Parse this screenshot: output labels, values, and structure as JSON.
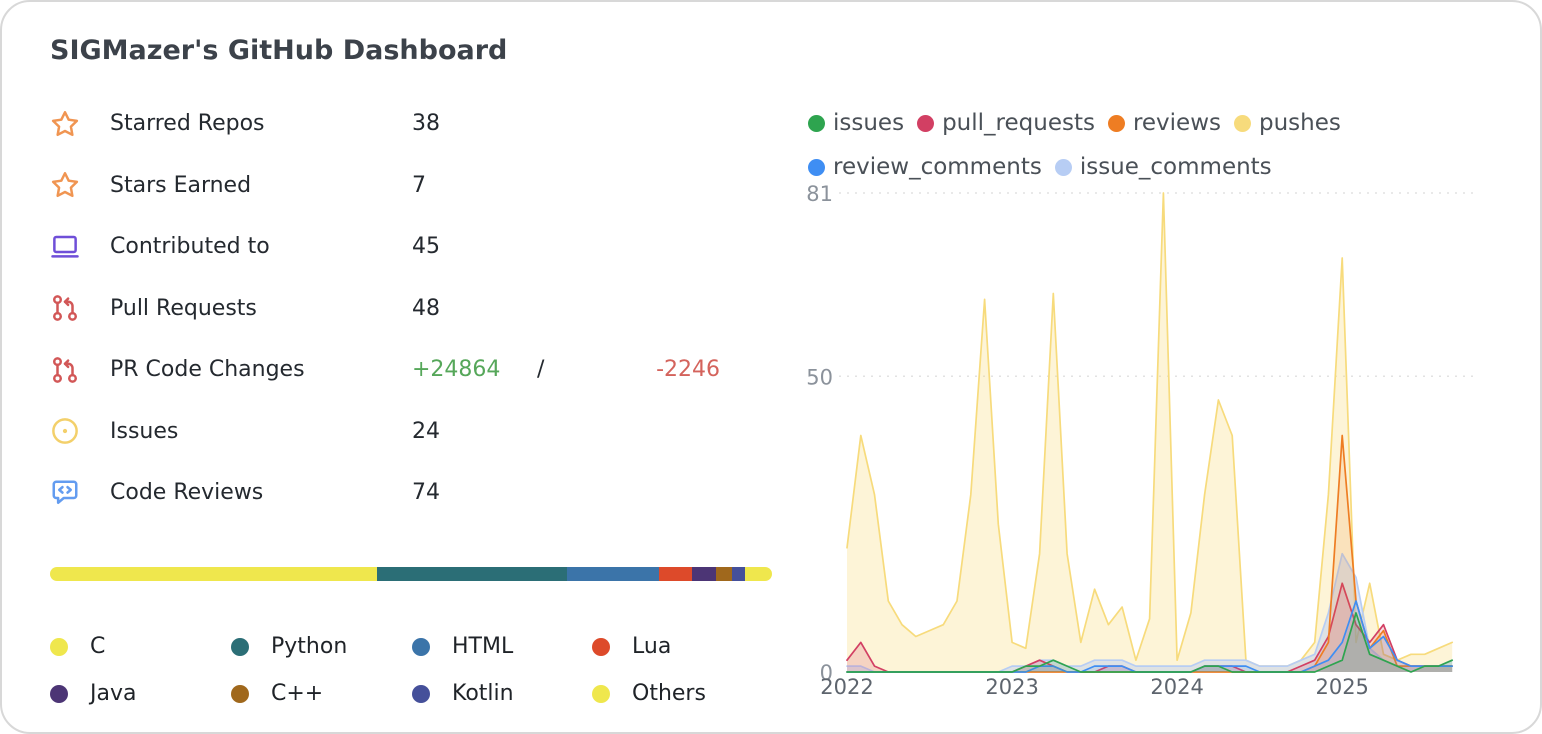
{
  "title": "SIGMazer's GitHub Dashboard",
  "colors": {
    "additions": "#56a75a",
    "deletions": "#d4635c",
    "title_text": "#3c424a",
    "card_border": "#d8d8d8"
  },
  "stats": [
    {
      "icon": "star-icon",
      "icon_color": "#f09552",
      "label": "Starred Repos",
      "value": "38"
    },
    {
      "icon": "star-icon",
      "icon_color": "#f09552",
      "label": "Stars Earned",
      "value": "7"
    },
    {
      "icon": "contributed-icon",
      "icon_color": "#6f4fd8",
      "label": "Contributed to",
      "value": "45"
    },
    {
      "icon": "pull-request-icon",
      "icon_color": "#d25757",
      "label": "Pull Requests",
      "value": "48"
    },
    {
      "icon": "pull-request-icon",
      "icon_color": "#d25757",
      "label": "PR Code Changes",
      "additions": "+24864",
      "separator": "/",
      "deletions": "-2246"
    },
    {
      "icon": "issue-icon",
      "icon_color": "#f3d06b",
      "label": "Issues",
      "value": "24"
    },
    {
      "icon": "code-review-icon",
      "icon_color": "#639cf0",
      "label": "Code Reviews",
      "value": "74"
    }
  ],
  "languages": [
    {
      "name": "C",
      "color": "#efe74d",
      "percent": 45.3
    },
    {
      "name": "Python",
      "color": "#2b6e76",
      "percent": 26.3
    },
    {
      "name": "HTML",
      "color": "#3b74a9",
      "percent": 12.7
    },
    {
      "name": "Lua",
      "color": "#dd4a2a",
      "percent": 4.6
    },
    {
      "name": "Java",
      "color": "#4c3575",
      "percent": 3.3
    },
    {
      "name": "C++",
      "color": "#a0681c",
      "percent": 2.2
    },
    {
      "name": "Kotlin",
      "color": "#45509a",
      "percent": 1.9
    },
    {
      "name": "Others",
      "color": "#efe74d",
      "percent": 3.7
    }
  ],
  "chart_data": {
    "type": "area",
    "title": "Contribution activity over time",
    "x_unit": "months, starting Jan 2022",
    "xlim": [
      2022,
      2025.75
    ],
    "ylim": [
      0,
      81
    ],
    "y_ticks": [
      0,
      50,
      81
    ],
    "grid_y": [
      50,
      81
    ],
    "x_ticks": [
      2022,
      2023,
      2024,
      2025
    ],
    "x_tick_labels": [
      "2022",
      "2023",
      "2024",
      "2025"
    ],
    "legend_rows": [
      [
        "issues",
        "pull_requests",
        "reviews",
        "pushes"
      ],
      [
        "review_comments",
        "issue_comments"
      ]
    ],
    "series": [
      {
        "name": "pushes",
        "color": "#f7db7c",
        "fill_opacity": 0.3,
        "values": [
          21,
          40,
          30,
          12,
          8,
          6,
          7,
          8,
          12,
          30,
          63,
          25,
          5,
          4,
          20,
          64,
          20,
          5,
          14,
          8,
          11,
          2,
          9,
          81,
          2,
          10,
          30,
          46,
          40,
          2,
          1,
          1,
          1,
          2,
          5,
          30,
          70,
          5,
          15,
          3,
          2,
          3,
          3,
          4,
          5
        ]
      },
      {
        "name": "issue_comments",
        "color": "#b7cdf4",
        "fill_opacity": 0.45,
        "values": [
          1,
          1,
          0,
          0,
          0,
          0,
          0,
          0,
          0,
          0,
          0,
          0,
          1,
          1,
          2,
          2,
          1,
          1,
          2,
          2,
          2,
          1,
          1,
          1,
          1,
          1,
          2,
          2,
          2,
          2,
          1,
          1,
          1,
          2,
          3,
          10,
          20,
          16,
          4,
          2,
          1,
          1,
          1,
          1,
          2
        ]
      },
      {
        "name": "pull_requests",
        "color": "#d23f63",
        "fill_opacity": 0.18,
        "values": [
          2,
          5,
          1,
          0,
          0,
          0,
          0,
          0,
          0,
          0,
          0,
          0,
          0,
          1,
          2,
          1,
          0,
          0,
          0,
          1,
          1,
          0,
          0,
          0,
          0,
          0,
          1,
          1,
          1,
          0,
          0,
          0,
          0,
          1,
          2,
          6,
          15,
          8,
          5,
          8,
          2,
          1,
          1,
          1,
          1
        ]
      },
      {
        "name": "reviews",
        "color": "#ee7d23",
        "fill_opacity": 0.15,
        "values": [
          0,
          0,
          0,
          0,
          0,
          0,
          0,
          0,
          0,
          0,
          0,
          0,
          0,
          0,
          0,
          0,
          0,
          0,
          0,
          0,
          0,
          0,
          0,
          0,
          0,
          0,
          0,
          0,
          0,
          0,
          0,
          0,
          0,
          0,
          1,
          5,
          40,
          12,
          4,
          7,
          1,
          1,
          1,
          1,
          1
        ]
      },
      {
        "name": "review_comments",
        "color": "#3f8ef3",
        "fill_opacity": 0.15,
        "values": [
          0,
          0,
          0,
          0,
          0,
          0,
          0,
          0,
          0,
          0,
          0,
          0,
          0,
          0,
          1,
          1,
          0,
          0,
          1,
          1,
          1,
          0,
          0,
          0,
          0,
          0,
          1,
          1,
          1,
          1,
          0,
          0,
          0,
          0,
          1,
          2,
          5,
          12,
          4,
          6,
          2,
          1,
          1,
          1,
          1
        ]
      },
      {
        "name": "issues",
        "color": "#2ea44f",
        "fill_opacity": 0.15,
        "values": [
          0,
          0,
          0,
          0,
          0,
          0,
          0,
          0,
          0,
          0,
          0,
          0,
          0,
          1,
          1,
          2,
          1,
          0,
          0,
          0,
          0,
          0,
          0,
          0,
          0,
          0,
          1,
          1,
          0,
          0,
          0,
          0,
          0,
          0,
          0,
          1,
          2,
          10,
          3,
          2,
          1,
          0,
          1,
          1,
          2
        ]
      }
    ]
  }
}
